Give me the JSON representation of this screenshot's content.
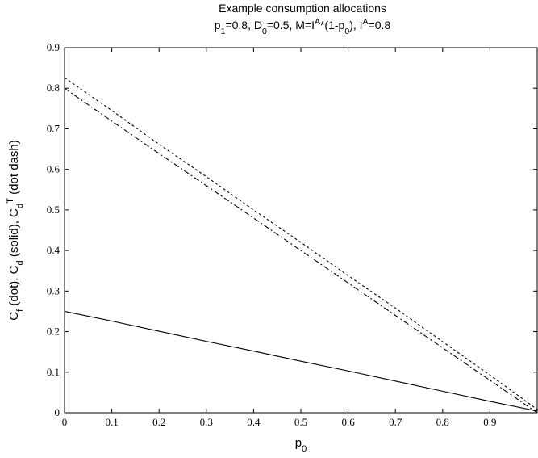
{
  "chart_data": {
    "type": "line",
    "title": "Example consumption allocations",
    "subtitle": {
      "parts": [
        {
          "t": "p"
        },
        {
          "t": "1",
          "sub": true
        },
        {
          "t": "=0.8, D"
        },
        {
          "t": "0",
          "sub": true
        },
        {
          "t": "=0.5, M=I"
        },
        {
          "t": "A",
          "sup": true
        },
        {
          "t": "*(1-p"
        },
        {
          "t": "0",
          "sub": true
        },
        {
          "t": "), I"
        },
        {
          "t": "A",
          "sup": true
        },
        {
          "t": "=0.8"
        }
      ]
    },
    "xlabel": {
      "parts": [
        {
          "t": "p"
        },
        {
          "t": "0",
          "sub": true
        }
      ]
    },
    "ylabel": {
      "parts": [
        {
          "t": "C"
        },
        {
          "t": "f",
          "sub": true
        },
        {
          "t": " (dot), C"
        },
        {
          "t": "d",
          "sub": true
        },
        {
          "t": " (solid), C"
        },
        {
          "t": "d",
          "sub": true
        },
        {
          "t": "T",
          "sup": true
        },
        {
          "t": " (dot dash)"
        }
      ]
    },
    "xlim": [
      0,
      1
    ],
    "ylim": [
      0,
      0.9
    ],
    "xticks": [
      "0",
      "0.1",
      "0.2",
      "0.3",
      "0.4",
      "0.5",
      "0.6",
      "0.7",
      "0.8",
      "0.9"
    ],
    "xtick_values": [
      0,
      0.1,
      0.2,
      0.3,
      0.4,
      0.5,
      0.6,
      0.7,
      0.8,
      0.9
    ],
    "yticks": [
      "0",
      "0.1",
      "0.2",
      "0.3",
      "0.4",
      "0.5",
      "0.6",
      "0.7",
      "0.8",
      "0.9"
    ],
    "ytick_values": [
      0,
      0.1,
      0.2,
      0.3,
      0.4,
      0.5,
      0.6,
      0.7,
      0.8,
      0.9
    ],
    "grid": false,
    "series": [
      {
        "style": "dotted",
        "color": "#000000",
        "x": [
          0,
          0.1,
          0.2,
          0.3,
          0.4,
          0.5,
          0.6,
          0.7,
          0.8,
          0.9,
          1.0
        ],
        "y": [
          0.826,
          0.745,
          0.662,
          0.582,
          0.5,
          0.42,
          0.338,
          0.258,
          0.175,
          0.093,
          0.008
        ]
      },
      {
        "style": "dashdot",
        "color": "#000000",
        "x": [
          0,
          0.1,
          0.2,
          0.3,
          0.4,
          0.5,
          0.6,
          0.7,
          0.8,
          0.9,
          1.0
        ],
        "y": [
          0.8,
          0.719,
          0.639,
          0.56,
          0.48,
          0.4,
          0.32,
          0.24,
          0.16,
          0.08,
          0.0
        ]
      },
      {
        "style": "solid",
        "color": "#000000",
        "x": [
          0,
          0.1,
          0.2,
          0.3,
          0.4,
          0.5,
          0.6,
          0.7,
          0.8,
          0.9,
          1.0
        ],
        "y": [
          0.25,
          0.226,
          0.201,
          0.176,
          0.152,
          0.127,
          0.103,
          0.078,
          0.053,
          0.028,
          0.004
        ]
      }
    ]
  }
}
